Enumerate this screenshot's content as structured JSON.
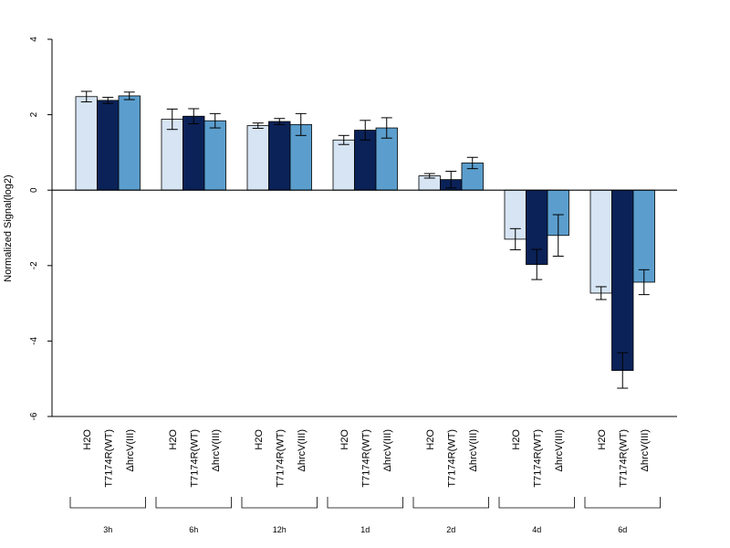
{
  "chart_data": {
    "type": "bar",
    "title": "",
    "xlabel": "",
    "ylabel": "Normalized Signal(log2)",
    "ylim": [
      -6,
      4
    ],
    "yticks": [
      -6,
      -4,
      -2,
      0,
      2,
      4
    ],
    "grid": false,
    "legend": "none",
    "categories": [
      "3h",
      "6h",
      "12h",
      "1d",
      "2d",
      "4d",
      "6d"
    ],
    "series": [
      {
        "name": "H2O",
        "color": "#d6e4f3",
        "values": [
          2.48,
          1.88,
          1.71,
          1.33,
          0.38,
          -1.3,
          -2.73
        ],
        "errors": [
          0.14,
          0.27,
          0.07,
          0.12,
          0.06,
          0.28,
          0.17
        ]
      },
      {
        "name": "T7174R(WT)",
        "color": "#0b2258",
        "values": [
          2.38,
          1.96,
          1.82,
          1.59,
          0.28,
          -1.97,
          -4.78
        ],
        "errors": [
          0.08,
          0.2,
          0.08,
          0.26,
          0.22,
          0.4,
          0.47
        ]
      },
      {
        "name": "ΔhrcV(III)",
        "color": "#5b9ecd",
        "values": [
          2.5,
          1.84,
          1.74,
          1.65,
          0.72,
          -1.2,
          -2.44
        ],
        "errors": [
          0.1,
          0.19,
          0.29,
          0.27,
          0.15,
          0.55,
          0.33
        ]
      }
    ]
  }
}
